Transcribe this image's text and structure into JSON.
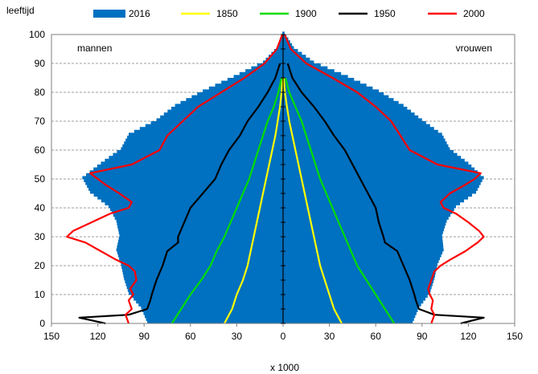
{
  "chart_data": {
    "type": "area",
    "ylabel": "leeftijd",
    "xlabel": "x 1000",
    "xlim": [
      -150,
      150
    ],
    "ylim": [
      0,
      100
    ],
    "x_ticks": [
      -150,
      -120,
      -90,
      -60,
      -30,
      0,
      30,
      60,
      90,
      120,
      150
    ],
    "x_tick_labels": [
      "150",
      "120",
      "90",
      "60",
      "30",
      "0",
      "30",
      "60",
      "90",
      "120",
      "150"
    ],
    "y_ticks": [
      0,
      10,
      20,
      30,
      40,
      50,
      60,
      70,
      80,
      90,
      100
    ],
    "y_tick_labels": [
      "0",
      "10",
      "20",
      "30",
      "40",
      "50",
      "60",
      "70",
      "80",
      "90",
      "100"
    ],
    "grid": "horizontal dashed",
    "legend_position": "top",
    "side_labels": {
      "left": "mannen",
      "right": "vrouwen"
    },
    "series": [
      {
        "name": "2016",
        "kind": "bars",
        "color": "#0070C0",
        "ages": [
          0,
          5,
          10,
          15,
          20,
          25,
          30,
          35,
          40,
          45,
          50,
          55,
          60,
          65,
          70,
          75,
          80,
          85,
          90,
          95,
          100
        ],
        "male": [
          88,
          92,
          100,
          103,
          105,
          108,
          106,
          108,
          113,
          125,
          130,
          118,
          105,
          100,
          82,
          70,
          52,
          32,
          13,
          4,
          0.5
        ],
        "female": [
          84,
          88,
          95,
          98,
          100,
          104,
          103,
          106,
          112,
          125,
          130,
          120,
          108,
          103,
          90,
          78,
          62,
          42,
          20,
          7,
          1
        ]
      },
      {
        "name": "1850",
        "color": "#FFFF00",
        "ages": [
          0,
          5,
          10,
          15,
          20,
          25,
          30,
          35,
          40,
          45,
          50,
          55,
          60,
          65,
          70,
          75,
          80,
          85
        ],
        "male": [
          38,
          33,
          30,
          26,
          23,
          21,
          19,
          17,
          15,
          13,
          11,
          9,
          7,
          5,
          3.5,
          2,
          1,
          0.3
        ],
        "female": [
          38,
          33,
          30,
          27,
          24,
          22,
          20,
          18,
          16,
          14,
          12,
          10,
          8,
          6,
          4,
          2.5,
          1.2,
          0.4
        ]
      },
      {
        "name": "1900",
        "color": "#00DD00",
        "ages": [
          0,
          5,
          10,
          15,
          20,
          25,
          30,
          35,
          40,
          45,
          50,
          55,
          60,
          65,
          70,
          75,
          80,
          85
        ],
        "male": [
          72,
          66,
          60,
          53,
          47,
          43,
          38,
          34,
          30,
          26,
          22,
          19,
          16,
          13,
          10,
          6,
          3,
          1
        ],
        "female": [
          72,
          66,
          60,
          54,
          48,
          44,
          40,
          36,
          32,
          28,
          24,
          21,
          18,
          15,
          12,
          8,
          4,
          1.5
        ]
      },
      {
        "name": "1950",
        "color": "#000000",
        "ages": [
          0,
          2,
          3,
          5,
          8,
          10,
          15,
          20,
          25,
          28,
          30,
          35,
          40,
          45,
          50,
          55,
          60,
          65,
          70,
          75,
          80,
          85,
          90
        ],
        "male": [
          115,
          132,
          100,
          88,
          86,
          85,
          82,
          78,
          75,
          68,
          68,
          64,
          60,
          52,
          44,
          40,
          35,
          28,
          23,
          16,
          10,
          5,
          2
        ],
        "female": [
          115,
          130,
          98,
          88,
          86,
          85,
          82,
          78,
          74,
          66,
          65,
          62,
          60,
          55,
          50,
          45,
          40,
          33,
          27,
          20,
          12,
          6,
          3
        ]
      },
      {
        "name": "2000",
        "color": "#FF0000",
        "ages": [
          0,
          3,
          5,
          8,
          10,
          12,
          15,
          18,
          20,
          22,
          25,
          28,
          30,
          32,
          35,
          38,
          40,
          42,
          45,
          48,
          50,
          52,
          55,
          60,
          65,
          70,
          75,
          80,
          85,
          90,
          95,
          100
        ],
        "male": [
          100,
          102,
          98,
          100,
          97,
          99,
          95,
          96,
          100,
          108,
          118,
          128,
          140,
          136,
          124,
          112,
          100,
          98,
          106,
          115,
          120,
          125,
          98,
          80,
          75,
          65,
          55,
          40,
          25,
          12,
          4,
          0.5
        ],
        "female": [
          96,
          98,
          96,
          97,
          95,
          94,
          96,
          98,
          102,
          108,
          118,
          126,
          130,
          127,
          120,
          112,
          104,
          102,
          108,
          118,
          124,
          128,
          100,
          82,
          76,
          70,
          60,
          48,
          32,
          15,
          5,
          1
        ]
      }
    ]
  }
}
